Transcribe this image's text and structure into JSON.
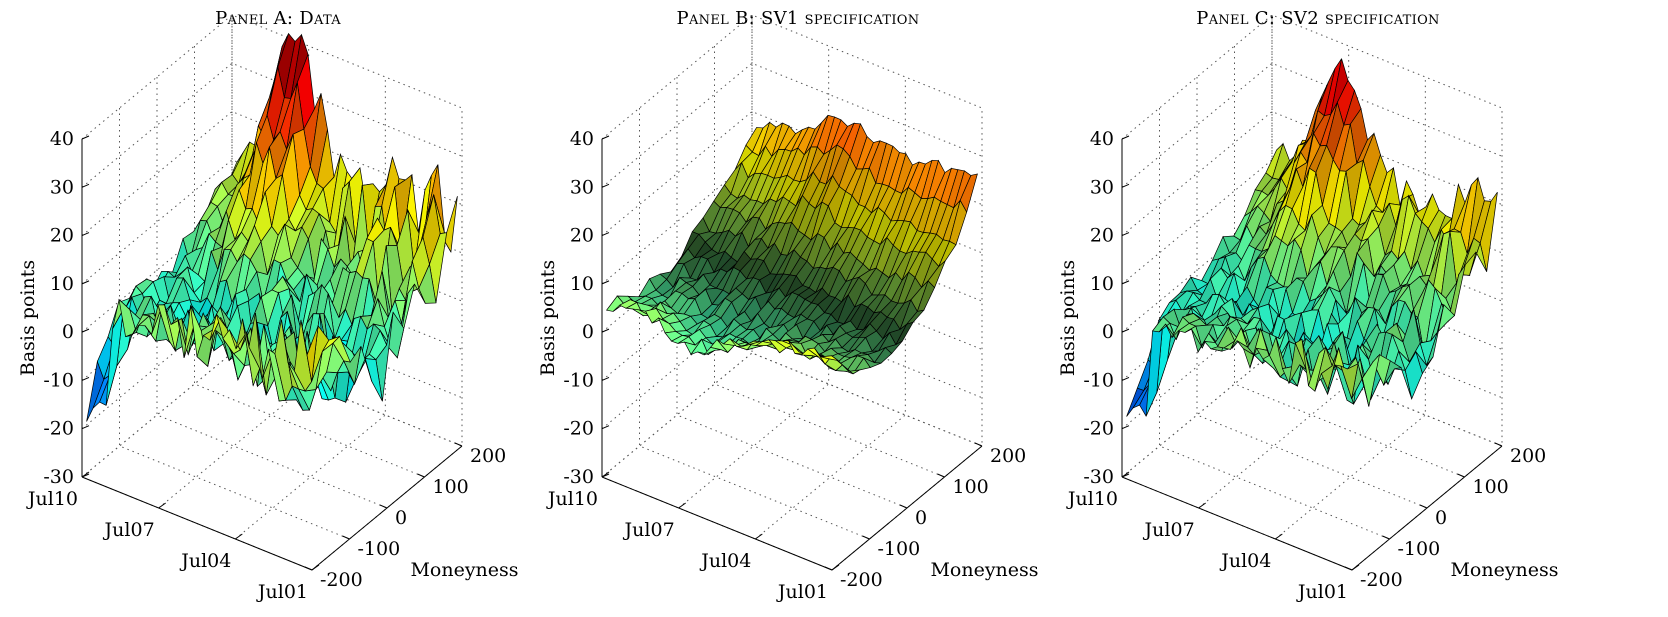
{
  "panels": [
    {
      "title": "Panel A: Data",
      "chart_data": {
        "type": "surface3d",
        "title": "Panel A: Data",
        "xlabel": "",
        "ylabel": "Moneyness",
        "zlabel": "Basis points",
        "x_ticks": [
          "Jul01",
          "Jul04",
          "Jul07",
          "Jul10"
        ],
        "y_ticks": [
          "-200",
          "-100",
          "0",
          "100",
          "200"
        ],
        "z_ticks": [
          "-30",
          "-20",
          "-10",
          "0",
          "10",
          "20",
          "30",
          "40"
        ],
        "zlim": [
          -30,
          40
        ],
        "colormap": "jet",
        "grid": true
      }
    },
    {
      "title": "Panel B: SV1 specification",
      "chart_data": {
        "type": "surface3d",
        "title": "Panel B: SV1 specification",
        "xlabel": "",
        "ylabel": "Moneyness",
        "zlabel": "Basis points",
        "x_ticks": [
          "Jul01",
          "Jul04",
          "Jul07",
          "Jul10"
        ],
        "y_ticks": [
          "-200",
          "-100",
          "0",
          "100",
          "200"
        ],
        "z_ticks": [
          "-30",
          "-20",
          "-10",
          "0",
          "10",
          "20",
          "30",
          "40"
        ],
        "zlim": [
          -30,
          40
        ],
        "colormap": "jet",
        "grid": true
      }
    },
    {
      "title": "Panel C: SV2 specification",
      "chart_data": {
        "type": "surface3d",
        "title": "Panel C: SV2 specification",
        "xlabel": "",
        "ylabel": "Moneyness",
        "zlabel": "Basis points",
        "x_ticks": [
          "Jul01",
          "Jul04",
          "Jul07",
          "Jul10"
        ],
        "y_ticks": [
          "-200",
          "-100",
          "0",
          "100",
          "200"
        ],
        "z_ticks": [
          "-30",
          "-20",
          "-10",
          "0",
          "10",
          "20",
          "30",
          "40"
        ],
        "zlim": [
          -30,
          40
        ],
        "colormap": "jet",
        "grid": true
      }
    }
  ]
}
